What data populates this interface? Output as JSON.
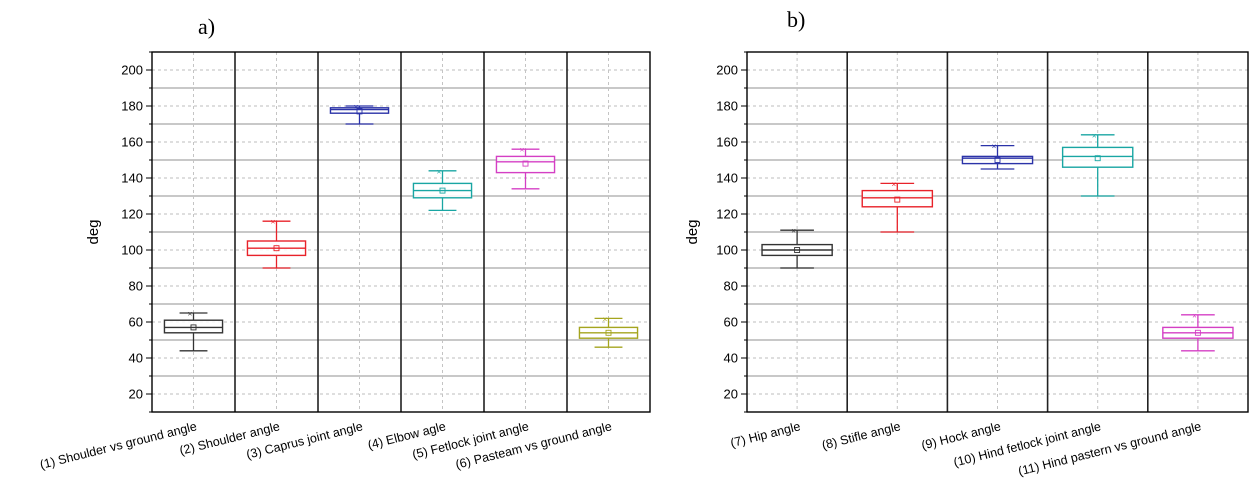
{
  "chart_data": [
    {
      "type": "box",
      "panel_label": "a)",
      "ylabel": "deg",
      "ylim": [
        10,
        210
      ],
      "yticks": [
        20,
        40,
        60,
        80,
        100,
        120,
        140,
        160,
        180,
        200
      ],
      "grid": true,
      "categories": [
        "(1) Shoulder vs ground angle",
        "(2) Shoulder angle",
        "(3) Caprus joint angle",
        "(4) Elbow agle",
        "(5) Fetlock joint angle",
        "(6) Pasteam vs ground angle"
      ],
      "boxes": [
        {
          "min": 44,
          "q1": 54,
          "median": 57,
          "q3": 61,
          "max": 65,
          "mean": 57,
          "color": "#333333"
        },
        {
          "min": 90,
          "q1": 97,
          "median": 101,
          "q3": 105,
          "max": 116,
          "mean": 101,
          "color": "#e8222a"
        },
        {
          "min": 170,
          "q1": 176,
          "median": 178,
          "q3": 179,
          "max": 180,
          "mean": 177,
          "color": "#2b33a8"
        },
        {
          "min": 122,
          "q1": 129,
          "median": 133,
          "q3": 137,
          "max": 144,
          "mean": 133,
          "color": "#19a6a3"
        },
        {
          "min": 134,
          "q1": 143,
          "median": 149,
          "q3": 152,
          "max": 156,
          "mean": 148,
          "color": "#d43fc4"
        },
        {
          "min": 46,
          "q1": 51,
          "median": 54,
          "q3": 57,
          "max": 62,
          "mean": 54,
          "color": "#a5a51f"
        }
      ]
    },
    {
      "type": "box",
      "panel_label": "b)",
      "ylabel": "deg",
      "ylim": [
        10,
        210
      ],
      "yticks": [
        20,
        40,
        60,
        80,
        100,
        120,
        140,
        160,
        180,
        200
      ],
      "grid": true,
      "categories": [
        "(7) Hip angle",
        "(8) Stifle angle",
        "(9) Hock angle",
        "(10) Hind fetlock joint angle",
        "(11) Hind pastern vs ground angle"
      ],
      "boxes": [
        {
          "min": 90,
          "q1": 97,
          "median": 100,
          "q3": 103,
          "max": 111,
          "mean": 100,
          "color": "#333333"
        },
        {
          "min": 110,
          "q1": 124,
          "median": 129,
          "q3": 133,
          "max": 137,
          "mean": 128,
          "color": "#e8222a"
        },
        {
          "min": 145,
          "q1": 148,
          "median": 151,
          "q3": 152,
          "max": 158,
          "mean": 150,
          "color": "#2b33a8"
        },
        {
          "min": 130,
          "q1": 146,
          "median": 152,
          "q3": 157,
          "max": 164,
          "mean": 151,
          "color": "#19a6a3"
        },
        {
          "min": 44,
          "q1": 51,
          "median": 54,
          "q3": 57,
          "max": 64,
          "mean": 54,
          "color": "#d43fc4"
        }
      ]
    }
  ]
}
